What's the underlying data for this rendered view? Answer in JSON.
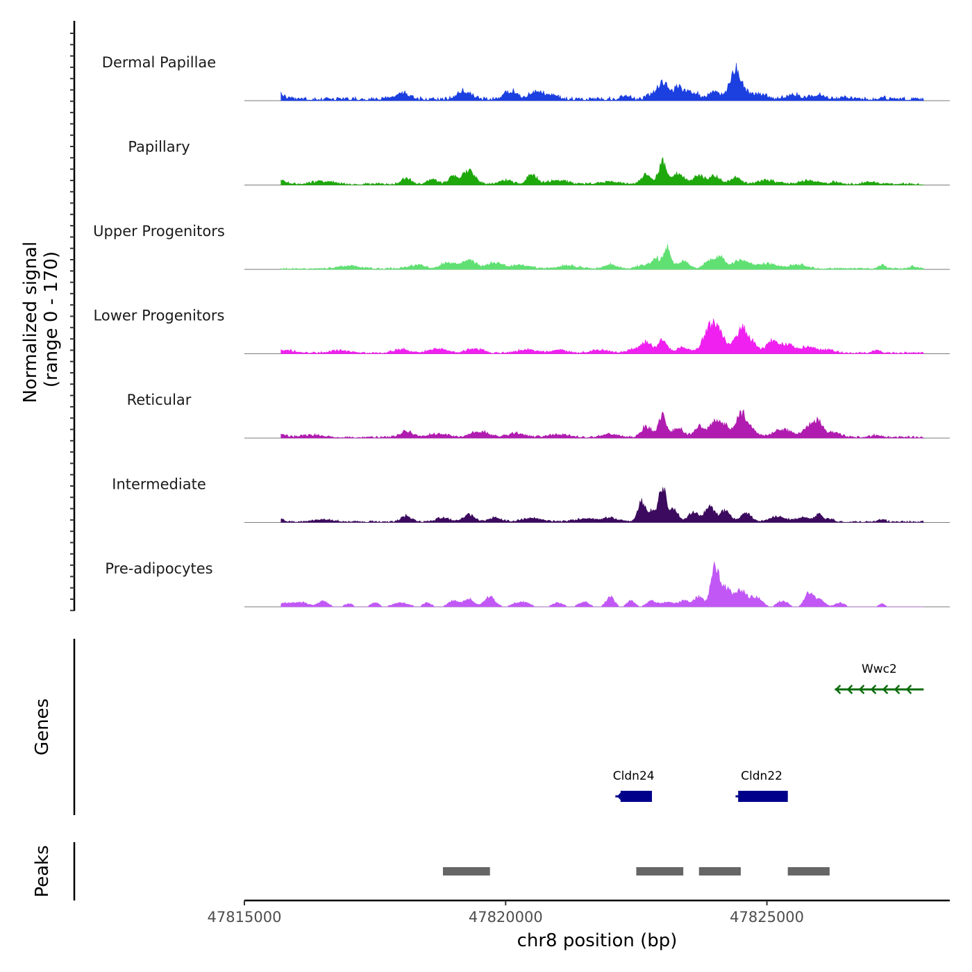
{
  "chart_data": {
    "type": "area",
    "title": "",
    "ylabel": "Normalized signal\n(range 0 - 170)",
    "ylabel_lines": [
      "Normalized signal",
      "(range 0 - 170)"
    ],
    "xlabel": "chr8 position (bp)",
    "xlim": [
      47815000,
      47828500
    ],
    "ylim": [
      0,
      170
    ],
    "x_ticks": [
      47815000,
      47820000,
      47825000
    ],
    "x_tick_labels": [
      "47815000",
      "47820000",
      "47825000"
    ],
    "signal_start": 47815700,
    "signal_end": 47828000,
    "tracks": [
      {
        "name": "Dermal Papillae",
        "color": "#1c3fe0",
        "baseline": 18,
        "peaks": [
          [
            47815600,
            40,
            120
          ],
          [
            47818000,
            30,
            150
          ],
          [
            47819200,
            38,
            130
          ],
          [
            47820100,
            45,
            120
          ],
          [
            47820600,
            38,
            130
          ],
          [
            47820900,
            25,
            100
          ],
          [
            47822300,
            20,
            80
          ],
          [
            47822800,
            25,
            90
          ],
          [
            47823000,
            85,
            80
          ],
          [
            47823300,
            55,
            150
          ],
          [
            47823600,
            30,
            100
          ],
          [
            47824000,
            45,
            100
          ],
          [
            47824400,
            145,
            110
          ],
          [
            47824800,
            30,
            160
          ],
          [
            47825500,
            22,
            150
          ],
          [
            47826000,
            22,
            130
          ],
          [
            47826500,
            10,
            80
          ],
          [
            47827200,
            12,
            60
          ]
        ]
      },
      {
        "name": "Papillary",
        "color": "#1ea80c",
        "baseline": 10,
        "peaks": [
          [
            47815600,
            25,
            150
          ],
          [
            47816500,
            15,
            200
          ],
          [
            47818100,
            30,
            100
          ],
          [
            47818600,
            28,
            90
          ],
          [
            47819000,
            40,
            90
          ],
          [
            47819300,
            75,
            110
          ],
          [
            47820000,
            20,
            130
          ],
          [
            47820500,
            50,
            90
          ],
          [
            47821000,
            20,
            180
          ],
          [
            47822000,
            12,
            200
          ],
          [
            47822700,
            45,
            100
          ],
          [
            47823000,
            110,
            70
          ],
          [
            47823300,
            50,
            120
          ],
          [
            47823700,
            45,
            100
          ],
          [
            47824000,
            40,
            100
          ],
          [
            47824400,
            35,
            100
          ],
          [
            47825000,
            18,
            180
          ],
          [
            47825800,
            18,
            180
          ],
          [
            47826300,
            10,
            80
          ],
          [
            47827000,
            10,
            150
          ]
        ]
      },
      {
        "name": "Upper Progenitors",
        "color": "#60e072",
        "baseline": 8,
        "peaks": [
          [
            47817000,
            15,
            200
          ],
          [
            47818300,
            18,
            150
          ],
          [
            47818900,
            30,
            140
          ],
          [
            47819300,
            42,
            140
          ],
          [
            47819800,
            30,
            140
          ],
          [
            47820300,
            18,
            170
          ],
          [
            47821200,
            15,
            200
          ],
          [
            47822000,
            22,
            110
          ],
          [
            47822600,
            15,
            110
          ],
          [
            47822900,
            50,
            110
          ],
          [
            47823100,
            95,
            60
          ],
          [
            47823400,
            40,
            110
          ],
          [
            47823900,
            35,
            110
          ],
          [
            47824100,
            55,
            90
          ],
          [
            47824500,
            40,
            160
          ],
          [
            47825000,
            25,
            180
          ],
          [
            47825600,
            20,
            170
          ],
          [
            47827200,
            20,
            60
          ],
          [
            47827800,
            10,
            80
          ]
        ]
      },
      {
        "name": "Lower Progenitors",
        "color": "#f020f0",
        "baseline": 9,
        "peaks": [
          [
            47815800,
            12,
            200
          ],
          [
            47816800,
            12,
            200
          ],
          [
            47818000,
            18,
            150
          ],
          [
            47818700,
            22,
            170
          ],
          [
            47819400,
            22,
            150
          ],
          [
            47820400,
            18,
            170
          ],
          [
            47821000,
            16,
            150
          ],
          [
            47821800,
            15,
            180
          ],
          [
            47822500,
            20,
            150
          ],
          [
            47822700,
            45,
            100
          ],
          [
            47823000,
            60,
            90
          ],
          [
            47823400,
            28,
            120
          ],
          [
            47823900,
            120,
            120
          ],
          [
            47824100,
            85,
            120
          ],
          [
            47824500,
            110,
            110
          ],
          [
            47824700,
            50,
            120
          ],
          [
            47825100,
            60,
            110
          ],
          [
            47825400,
            40,
            130
          ],
          [
            47825800,
            30,
            150
          ],
          [
            47826200,
            15,
            130
          ],
          [
            47827100,
            15,
            80
          ]
        ]
      },
      {
        "name": "Reticular",
        "color": "#b01cb0",
        "baseline": 10,
        "peaks": [
          [
            47815600,
            22,
            140
          ],
          [
            47816300,
            12,
            200
          ],
          [
            47818100,
            28,
            120
          ],
          [
            47818700,
            18,
            180
          ],
          [
            47819500,
            28,
            170
          ],
          [
            47820200,
            20,
            170
          ],
          [
            47821000,
            15,
            180
          ],
          [
            47822000,
            15,
            170
          ],
          [
            47822700,
            55,
            100
          ],
          [
            47823000,
            110,
            70
          ],
          [
            47823300,
            45,
            110
          ],
          [
            47823700,
            55,
            90
          ],
          [
            47824000,
            75,
            100
          ],
          [
            47824200,
            55,
            100
          ],
          [
            47824500,
            110,
            100
          ],
          [
            47824700,
            40,
            120
          ],
          [
            47825300,
            40,
            170
          ],
          [
            47825800,
            55,
            110
          ],
          [
            47826000,
            70,
            90
          ],
          [
            47826300,
            25,
            110
          ],
          [
            47827100,
            12,
            80
          ]
        ]
      },
      {
        "name": "Intermediate",
        "color": "#3c0a5e",
        "baseline": 8,
        "peaks": [
          [
            47815600,
            30,
            100
          ],
          [
            47816500,
            12,
            200
          ],
          [
            47818100,
            28,
            100
          ],
          [
            47818800,
            22,
            120
          ],
          [
            47819300,
            38,
            110
          ],
          [
            47819800,
            22,
            120
          ],
          [
            47820500,
            18,
            200
          ],
          [
            47821500,
            15,
            200
          ],
          [
            47822000,
            18,
            180
          ],
          [
            47822600,
            100,
            70
          ],
          [
            47822800,
            55,
            90
          ],
          [
            47823000,
            170,
            60
          ],
          [
            47823200,
            70,
            90
          ],
          [
            47823600,
            50,
            100
          ],
          [
            47823900,
            80,
            90
          ],
          [
            47824200,
            55,
            100
          ],
          [
            47824600,
            45,
            100
          ],
          [
            47825200,
            25,
            150
          ],
          [
            47825700,
            22,
            150
          ],
          [
            47826000,
            35,
            70
          ],
          [
            47826200,
            15,
            80
          ],
          [
            47827200,
            12,
            60
          ]
        ]
      },
      {
        "name": "Pre-adipocytes",
        "color": "#c158f5",
        "baseline": 0,
        "peaks": [
          [
            47815800,
            20,
            120
          ],
          [
            47816100,
            22,
            120
          ],
          [
            47816500,
            28,
            100
          ],
          [
            47817000,
            15,
            80
          ],
          [
            47817500,
            20,
            80
          ],
          [
            47818000,
            20,
            150
          ],
          [
            47818500,
            20,
            80
          ],
          [
            47819000,
            30,
            100
          ],
          [
            47819300,
            40,
            100
          ],
          [
            47819700,
            50,
            100
          ],
          [
            47820300,
            25,
            150
          ],
          [
            47821000,
            20,
            100
          ],
          [
            47821500,
            25,
            100
          ],
          [
            47822000,
            50,
            80
          ],
          [
            47822400,
            30,
            80
          ],
          [
            47822800,
            30,
            100
          ],
          [
            47823100,
            25,
            100
          ],
          [
            47823400,
            30,
            100
          ],
          [
            47823700,
            50,
            100
          ],
          [
            47824000,
            210,
            70
          ],
          [
            47824200,
            90,
            110
          ],
          [
            47824500,
            80,
            120
          ],
          [
            47824800,
            45,
            110
          ],
          [
            47825300,
            30,
            100
          ],
          [
            47825800,
            65,
            80
          ],
          [
            47826000,
            35,
            100
          ],
          [
            47826400,
            20,
            90
          ],
          [
            47827200,
            15,
            60
          ]
        ]
      }
    ],
    "genes": [
      {
        "name": "Wwc2",
        "start": 47826300,
        "end": 47828000,
        "strand": "-",
        "color": "#0a6b0a",
        "row": 0,
        "exons": []
      },
      {
        "name": "Cldn24",
        "start": 47822100,
        "end": 47822800,
        "strand": "-",
        "color": "#00008b",
        "row": 1,
        "exons": [
          [
            47822200,
            47822800
          ]
        ]
      },
      {
        "name": "Cldn22",
        "start": 47824400,
        "end": 47825400,
        "strand": "-",
        "color": "#00008b",
        "row": 1,
        "exons": [
          [
            47824450,
            47825400
          ]
        ]
      }
    ],
    "peak_regions": [
      [
        47818800,
        47819700
      ],
      [
        47822500,
        47823400
      ],
      [
        47823700,
        47824500
      ],
      [
        47825400,
        47826200
      ]
    ],
    "panel_labels": {
      "genes": "Genes",
      "peaks": "Peaks"
    },
    "peak_color": "#666666"
  }
}
